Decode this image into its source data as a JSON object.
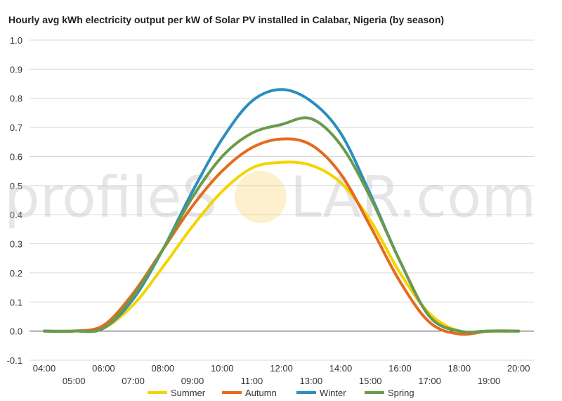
{
  "watermark": {
    "left": "profileS",
    "right": "LAR.com",
    "sun_color": "#f7c948"
  },
  "chart_data": {
    "type": "line",
    "title": "Hourly avg kWh electricity output per kW of Solar PV installed in Calabar, Nigeria (by season)",
    "xlabel": "",
    "ylabel": "",
    "ylim": [
      -0.1,
      1.0
    ],
    "yticks": [
      "-0.1",
      "0.0",
      "0.1",
      "0.2",
      "0.3",
      "0.4",
      "0.5",
      "0.6",
      "0.7",
      "0.8",
      "0.9",
      "1.0"
    ],
    "x": [
      "04:00",
      "05:00",
      "06:00",
      "07:00",
      "08:00",
      "09:00",
      "10:00",
      "11:00",
      "12:00",
      "13:00",
      "14:00",
      "15:00",
      "16:00",
      "17:00",
      "18:00",
      "19:00",
      "20:00"
    ],
    "grid": true,
    "legend_position": "bottom",
    "series": [
      {
        "name": "Summer",
        "color": "#f5d300",
        "values": [
          0.0,
          0.0,
          0.01,
          0.09,
          0.22,
          0.36,
          0.48,
          0.56,
          0.58,
          0.57,
          0.51,
          0.38,
          0.2,
          0.06,
          0.0,
          0.0,
          0.0
        ]
      },
      {
        "name": "Autumn",
        "color": "#e36c1e",
        "values": [
          0.0,
          0.0,
          0.02,
          0.13,
          0.28,
          0.43,
          0.55,
          0.63,
          0.66,
          0.64,
          0.54,
          0.36,
          0.17,
          0.03,
          -0.01,
          0.0,
          0.0
        ]
      },
      {
        "name": "Winter",
        "color": "#2a8fbd",
        "values": [
          0.0,
          0.0,
          0.01,
          0.11,
          0.28,
          0.48,
          0.66,
          0.79,
          0.83,
          0.79,
          0.68,
          0.47,
          0.24,
          0.05,
          0.0,
          0.0,
          0.0
        ]
      },
      {
        "name": "Spring",
        "color": "#6b9a4c",
        "values": [
          0.0,
          0.0,
          0.01,
          0.12,
          0.28,
          0.46,
          0.6,
          0.68,
          0.71,
          0.73,
          0.64,
          0.46,
          0.24,
          0.05,
          0.0,
          0.0,
          0.0
        ]
      }
    ]
  }
}
